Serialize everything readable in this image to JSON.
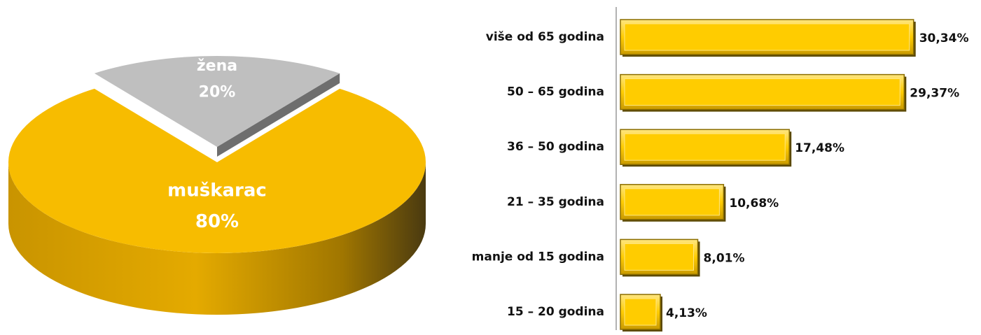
{
  "chart_data": [
    {
      "type": "pie",
      "categories": [
        "žena",
        "muškarac"
      ],
      "values": [
        20,
        80
      ],
      "value_labels": [
        "20%",
        "80%"
      ],
      "colors": [
        "#bfbfbf",
        "#f7bc00"
      ]
    },
    {
      "type": "bar",
      "categories": [
        "više od 65 godina",
        "50 – 65 godina",
        "36 – 50 godina",
        "21 – 35 godina",
        "manje od 15 godina",
        "15 – 20 godina"
      ],
      "values": [
        30.34,
        29.37,
        17.48,
        10.68,
        8.01,
        4.13
      ],
      "value_labels": [
        "30,34%",
        "29,37%",
        "17,48%",
        "10,68%",
        "8,01%",
        "4,13%"
      ],
      "color": "#ffcc00",
      "xlim": [
        0,
        35
      ]
    }
  ]
}
